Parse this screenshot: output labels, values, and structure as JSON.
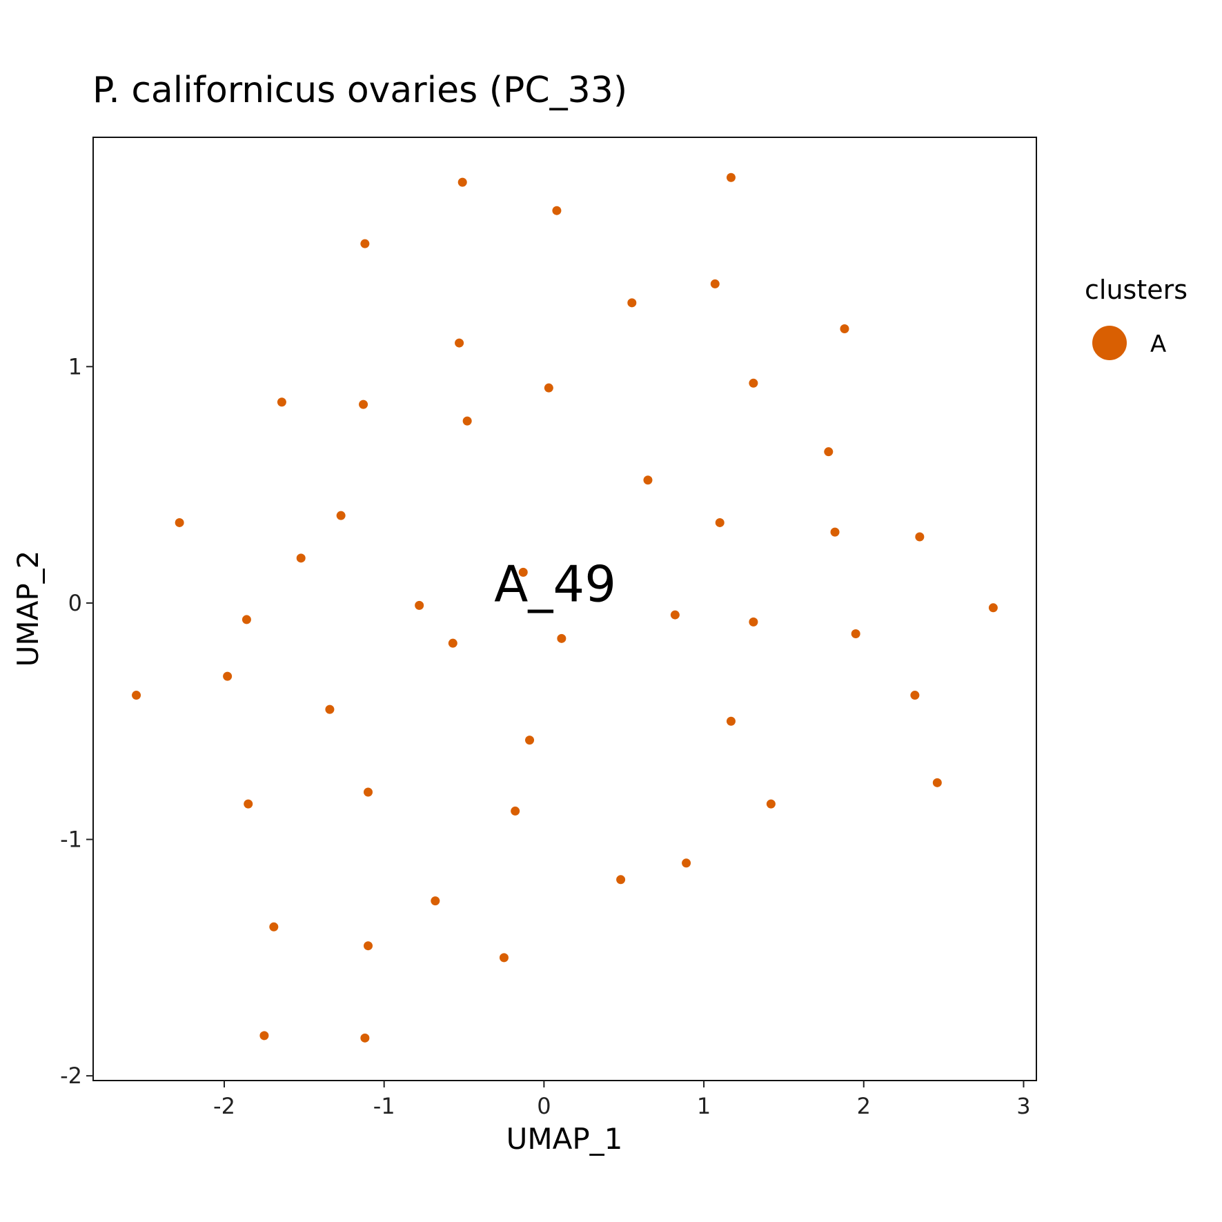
{
  "chart_data": {
    "type": "scatter",
    "title": "P. californicus ovaries (PC_33)",
    "xlabel": "UMAP_1",
    "ylabel": "UMAP_2",
    "xlim": [
      -2.82,
      3.08
    ],
    "ylim": [
      -2.02,
      1.97
    ],
    "xticks": [
      {
        "value": -2,
        "label": "-2"
      },
      {
        "value": -1,
        "label": "-1"
      },
      {
        "value": 0,
        "label": "0"
      },
      {
        "value": 1,
        "label": "1"
      },
      {
        "value": 2,
        "label": "2"
      },
      {
        "value": 3,
        "label": "3"
      }
    ],
    "yticks": [
      {
        "value": -2,
        "label": "-2"
      },
      {
        "value": -1,
        "label": "-1"
      },
      {
        "value": 0,
        "label": "0"
      },
      {
        "value": 1,
        "label": "1"
      }
    ],
    "grid": false,
    "legend": {
      "title": "clusters",
      "position": "right",
      "entries": [
        {
          "label": "A",
          "color": "#D95F02"
        }
      ]
    },
    "series": [
      {
        "name": "A",
        "color": "#D95F02",
        "points": [
          {
            "x": -0.51,
            "y": 1.78
          },
          {
            "x": 0.08,
            "y": 1.66
          },
          {
            "x": 1.17,
            "y": 1.8
          },
          {
            "x": -1.12,
            "y": 1.52
          },
          {
            "x": 1.07,
            "y": 1.35
          },
          {
            "x": 0.55,
            "y": 1.27
          },
          {
            "x": 1.88,
            "y": 1.16
          },
          {
            "x": -0.53,
            "y": 1.1
          },
          {
            "x": 0.03,
            "y": 0.91
          },
          {
            "x": 1.31,
            "y": 0.93
          },
          {
            "x": -1.64,
            "y": 0.85
          },
          {
            "x": -1.13,
            "y": 0.84
          },
          {
            "x": -0.48,
            "y": 0.77
          },
          {
            "x": 1.78,
            "y": 0.64
          },
          {
            "x": 0.65,
            "y": 0.52
          },
          {
            "x": -2.28,
            "y": 0.34
          },
          {
            "x": -1.27,
            "y": 0.37
          },
          {
            "x": 1.1,
            "y": 0.34
          },
          {
            "x": 1.82,
            "y": 0.3
          },
          {
            "x": 2.35,
            "y": 0.28
          },
          {
            "x": -1.52,
            "y": 0.19
          },
          {
            "x": -0.13,
            "y": 0.13
          },
          {
            "x": -0.78,
            "y": -0.01
          },
          {
            "x": 2.81,
            "y": -0.02
          },
          {
            "x": 0.82,
            "y": -0.05
          },
          {
            "x": -1.86,
            "y": -0.07
          },
          {
            "x": 1.31,
            "y": -0.08
          },
          {
            "x": 1.95,
            "y": -0.13
          },
          {
            "x": 0.11,
            "y": -0.15
          },
          {
            "x": -0.57,
            "y": -0.17
          },
          {
            "x": -1.98,
            "y": -0.31
          },
          {
            "x": -2.55,
            "y": -0.39
          },
          {
            "x": 2.32,
            "y": -0.39
          },
          {
            "x": -1.34,
            "y": -0.45
          },
          {
            "x": 1.17,
            "y": -0.5
          },
          {
            "x": -0.09,
            "y": -0.58
          },
          {
            "x": 2.46,
            "y": -0.76
          },
          {
            "x": -1.1,
            "y": -0.8
          },
          {
            "x": -1.85,
            "y": -0.85
          },
          {
            "x": 1.42,
            "y": -0.85
          },
          {
            "x": -0.18,
            "y": -0.88
          },
          {
            "x": 0.89,
            "y": -1.1
          },
          {
            "x": 0.48,
            "y": -1.17
          },
          {
            "x": -0.68,
            "y": -1.26
          },
          {
            "x": -1.69,
            "y": -1.37
          },
          {
            "x": -1.1,
            "y": -1.45
          },
          {
            "x": -0.25,
            "y": -1.5
          },
          {
            "x": -1.75,
            "y": -1.83
          },
          {
            "x": -1.12,
            "y": -1.84
          }
        ]
      }
    ],
    "annotations": [
      {
        "text": "A_49",
        "x": 0.07,
        "y": 0.08
      }
    ]
  }
}
